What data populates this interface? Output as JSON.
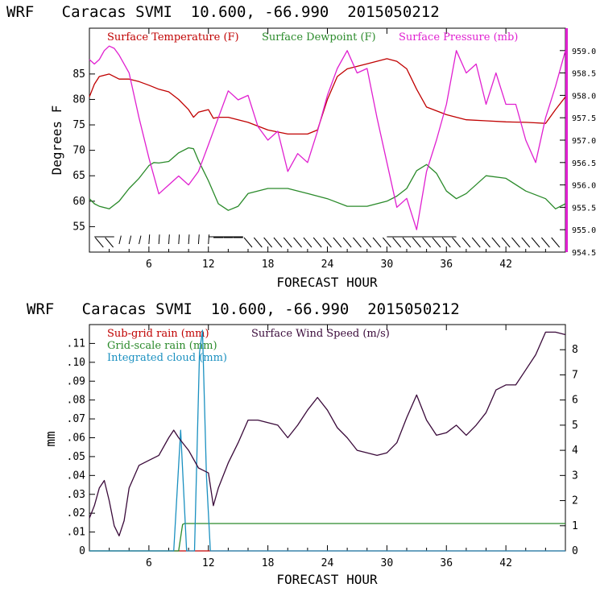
{
  "colors": {
    "temperature": "#c00000",
    "dewpoint": "#2a8a2a",
    "pressure": "#e020d0",
    "wind": "#3a0a3a",
    "subgrid_rain": "#c00000",
    "gridscale_rain": "#2a8a2a",
    "cloud": "#1a90c0",
    "barbs": "#000000"
  },
  "chart_data": [
    {
      "type": "line",
      "title": "WRF   Caracas SVMI  10.600, -66.990  2015050212",
      "xlabel": "FORECAST HOUR",
      "ylabel": "Degrees F",
      "xlim": [
        0,
        48
      ],
      "xticks": [
        "6",
        "12",
        "18",
        "24",
        "30",
        "36",
        "42"
      ],
      "ylim": [
        50,
        94
      ],
      "yticks": [
        "55",
        "60",
        "65",
        "70",
        "75",
        "80",
        "85"
      ],
      "y2lim": [
        954.5,
        959.5
      ],
      "y2ticks": [
        "954.5",
        "955.0",
        "955.5",
        "956.0",
        "956.5",
        "957.0",
        "957.5",
        "958.0",
        "958.5",
        "959.0"
      ],
      "legend": [
        "Surface Temperature (F)",
        "Surface Dewpoint (F)",
        "Surface Pressure (mb)"
      ],
      "series": [
        {
          "name": "Surface Temperature (F)",
          "axis": "left",
          "x": [
            0,
            0.5,
            1,
            2,
            3,
            4,
            5,
            6,
            7,
            8,
            9,
            10,
            10.5,
            11,
            12,
            12.5,
            13,
            14,
            16,
            18,
            20,
            22,
            23,
            24,
            25,
            26,
            28,
            30,
            31,
            32,
            33,
            34,
            36,
            38,
            40,
            42,
            44,
            45,
            46,
            47,
            48
          ],
          "values": [
            80.5,
            83,
            84.5,
            85,
            84,
            84,
            83.5,
            82.8,
            82,
            81.5,
            80,
            78,
            76.5,
            77.5,
            78,
            76.3,
            76.5,
            76.5,
            75.5,
            74,
            73.2,
            73.2,
            74,
            80,
            84.5,
            86,
            87,
            88,
            87.5,
            86,
            82,
            78.5,
            77,
            76,
            75.8,
            75.6,
            75.5,
            75.4,
            75.3,
            78,
            80.5
          ]
        },
        {
          "name": "Surface Dewpoint (F)",
          "axis": "left",
          "x": [
            0,
            0.5,
            1,
            2,
            3,
            4,
            5,
            6,
            6.5,
            7,
            8,
            9,
            10,
            10.5,
            11,
            12,
            13,
            14,
            15,
            16,
            18,
            20,
            22,
            24,
            26,
            28,
            30,
            31,
            32,
            33,
            34,
            35,
            36,
            37,
            38,
            40,
            42,
            44,
            46,
            47,
            48
          ],
          "values": [
            60.5,
            59.5,
            59,
            58.5,
            60,
            62.5,
            64.5,
            67,
            67.6,
            67.5,
            67.8,
            69.5,
            70.5,
            70.3,
            68,
            64,
            59.5,
            58.2,
            59,
            61.5,
            62.5,
            62.5,
            61.5,
            60.5,
            59,
            59,
            60,
            61,
            62.5,
            66,
            67.2,
            65.5,
            62,
            60.5,
            61.5,
            65,
            64.5,
            62,
            60.5,
            58.5,
            59.5
          ]
        },
        {
          "name": "Surface Pressure (mb)",
          "axis": "right",
          "x": [
            0,
            0.5,
            1,
            1.5,
            2,
            2.5,
            3,
            4,
            5,
            6,
            7,
            8,
            9,
            10,
            11,
            12,
            13,
            14,
            15,
            16,
            17,
            18,
            19,
            20,
            21,
            22,
            23,
            24,
            25,
            26,
            27,
            28,
            29,
            30,
            31,
            32,
            33,
            34,
            35,
            36,
            37,
            38,
            39,
            40,
            41,
            42,
            43,
            44,
            45,
            46,
            47,
            48
          ],
          "values": [
            958.8,
            958.7,
            958.8,
            959.0,
            959.1,
            959.05,
            958.9,
            958.5,
            957.5,
            956.6,
            955.8,
            956.0,
            956.2,
            956.0,
            956.3,
            956.9,
            957.5,
            958.1,
            957.9,
            958.0,
            957.3,
            957.0,
            957.2,
            956.3,
            956.7,
            956.5,
            957.2,
            958.0,
            958.6,
            959.0,
            958.5,
            958.6,
            957.5,
            956.5,
            955.5,
            955.7,
            955.0,
            956.3,
            957.0,
            957.8,
            959.0,
            958.5,
            958.7,
            957.8,
            958.5,
            957.8,
            957.8,
            957.0,
            956.5,
            957.5,
            958.2,
            959.0
          ]
        }
      ]
    },
    {
      "type": "line",
      "title": "WRF   Caracas SVMI  10.600, -66.990  2015050212",
      "xlabel": "FORECAST HOUR",
      "ylabel": "mm",
      "xlim": [
        0,
        48
      ],
      "xticks": [
        "6",
        "12",
        "18",
        "24",
        "30",
        "36",
        "42"
      ],
      "ylim": [
        0,
        0.12
      ],
      "yticks": [
        "0",
        ".01",
        ".02",
        ".03",
        ".04",
        ".05",
        ".06",
        ".07",
        ".08",
        ".09",
        ".10",
        ".11"
      ],
      "y2lim": [
        0,
        9
      ],
      "y2ticks": [
        "0",
        "1",
        "2",
        "3",
        "4",
        "5",
        "6",
        "7",
        "8"
      ],
      "legend": [
        "Sub-grid rain (mm)",
        "Grid-scale rain (mm)",
        "Integrated cloud (mm)",
        "Surface Wind Speed (m/s)"
      ],
      "series": [
        {
          "name": "Sub-grid rain (mm)",
          "axis": "left",
          "x": [
            0,
            48
          ],
          "values": [
            0,
            0
          ]
        },
        {
          "name": "Grid-scale rain (mm)",
          "axis": "left",
          "x": [
            0,
            9,
            9.4,
            9.6,
            48
          ],
          "values": [
            0,
            0,
            0.014,
            0.0145,
            0.0145
          ]
        },
        {
          "name": "Integrated cloud (mm)",
          "axis": "left",
          "x": [
            0,
            8.5,
            9.2,
            9.8,
            10.6,
            11.1,
            11.4,
            11.8,
            12.2,
            48
          ],
          "values": [
            0,
            0,
            0.064,
            0,
            0,
            0.105,
            0.117,
            0.04,
            0,
            0
          ]
        },
        {
          "name": "Surface Wind Speed (m/s)",
          "axis": "right",
          "x": [
            0,
            0.5,
            1,
            1.5,
            2,
            2.5,
            3,
            3.5,
            4,
            5,
            6,
            7,
            8,
            8.5,
            9,
            10,
            11,
            12,
            12.5,
            13,
            14,
            15,
            16,
            17,
            18,
            19,
            20,
            21,
            22,
            23,
            24,
            25,
            26,
            27,
            28,
            29,
            30,
            31,
            32,
            33,
            34,
            35,
            36,
            37,
            38,
            39,
            40,
            41,
            42,
            43,
            44,
            45,
            46,
            47,
            48
          ],
          "values": [
            1.3,
            1.8,
            2.5,
            2.8,
            2.0,
            1.0,
            0.6,
            1.2,
            2.5,
            3.4,
            3.6,
            3.8,
            4.5,
            4.8,
            4.5,
            4.0,
            3.3,
            3.1,
            1.8,
            2.5,
            3.5,
            4.3,
            5.2,
            5.2,
            5.1,
            5.0,
            4.5,
            5.0,
            5.6,
            6.1,
            5.6,
            4.9,
            4.5,
            4.0,
            3.9,
            3.8,
            3.9,
            4.3,
            5.3,
            6.2,
            5.2,
            4.6,
            4.7,
            5.0,
            4.6,
            5.0,
            5.5,
            6.4,
            6.6,
            6.6,
            7.2,
            7.8,
            8.7,
            8.7,
            8.6
          ]
        }
      ]
    }
  ]
}
